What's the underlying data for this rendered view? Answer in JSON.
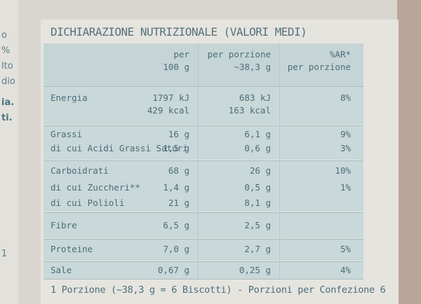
{
  "left_fragments": [
    "o",
    "%",
    "lto",
    "dio",
    "ia.",
    "ti.",
    "1"
  ],
  "title": "DICHIARAZIONE NUTRIZIONALE (VALORI MEDI)",
  "header": {
    "col1_line1": "per",
    "col1_line2": "100 g",
    "col2_line1": "per porzione",
    "col2_line2": "~38,3 g",
    "col3_line1": "%AR*",
    "col3_line2": "per porzione"
  },
  "rows": [
    {
      "label": "Energia",
      "per100": "1797 kJ",
      "portion": "683 kJ",
      "ar": "8%"
    },
    {
      "label": "",
      "per100": "429 kcal",
      "portion": "163 kcal",
      "ar": ""
    },
    {
      "label": "Grassi",
      "per100": "16 g",
      "portion": "6,1 g",
      "ar": "9%"
    },
    {
      "label": "di cui Acidi Grassi Saturi",
      "per100": "1,5 g",
      "portion": "0,6 g",
      "ar": "3%"
    },
    {
      "label": "Carboidrati",
      "per100": "68 g",
      "portion": "26 g",
      "ar": "10%"
    },
    {
      "label": "di cui Zuccheri**",
      "per100": "1,4 g",
      "portion": "0,5 g",
      "ar": "1%"
    },
    {
      "label": "di cui Polioli",
      "per100": "21 g",
      "portion": "8,1 g",
      "ar": ""
    },
    {
      "label": "Fibre",
      "per100": "6,5 g",
      "portion": "2,5 g",
      "ar": ""
    },
    {
      "label": "Proteine",
      "per100": "7,0 g",
      "portion": "2,7 g",
      "ar": "5%"
    },
    {
      "label": "Sale",
      "per100": "0,67 g",
      "portion": "0,25 g",
      "ar": "4%"
    }
  ],
  "footer": "1 Porzione (~38,3 g = 6 Biscotti) - Porzioni per Confezione 6"
}
